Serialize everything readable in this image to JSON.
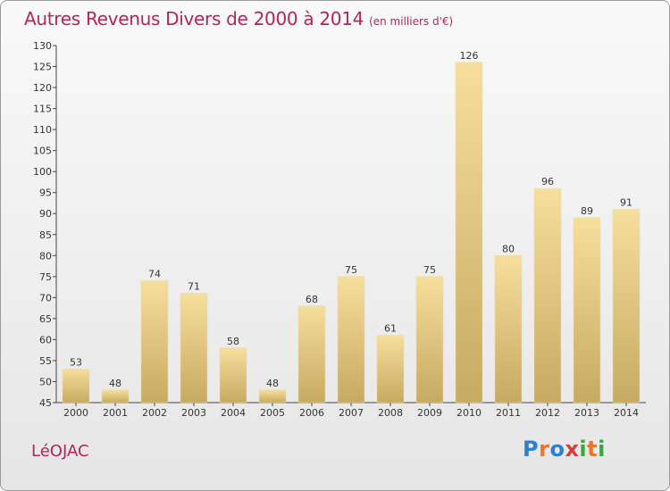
{
  "chart_data": {
    "type": "bar",
    "title": "Autres Revenus Divers de 2000 à 2014",
    "subtitle": "(en milliers d'€)",
    "categories": [
      "2000",
      "2001",
      "2002",
      "2003",
      "2004",
      "2005",
      "2006",
      "2007",
      "2008",
      "2009",
      "2010",
      "2011",
      "2012",
      "2013",
      "2014"
    ],
    "values": [
      53,
      48,
      74,
      71,
      58,
      48,
      68,
      75,
      61,
      75,
      126,
      80,
      96,
      89,
      91
    ],
    "ylim": [
      45,
      130
    ],
    "yticks": [
      45,
      50,
      55,
      60,
      65,
      70,
      75,
      80,
      85,
      90,
      95,
      100,
      105,
      110,
      115,
      120,
      125,
      130
    ],
    "grid": false,
    "colors": {
      "bar_light": "#f5dc98",
      "bar_dark": "#c9ad66",
      "text": "#333333",
      "accent": "#b52456"
    }
  },
  "footer": {
    "commune": "LéOJAC",
    "logo": "Proxiti"
  },
  "logo_colors": [
    "#2f7fd1",
    "#e8762b",
    "#2f7fd1",
    "#d63c3c",
    "#3aa640",
    "#e8762b",
    "#3aa640"
  ]
}
